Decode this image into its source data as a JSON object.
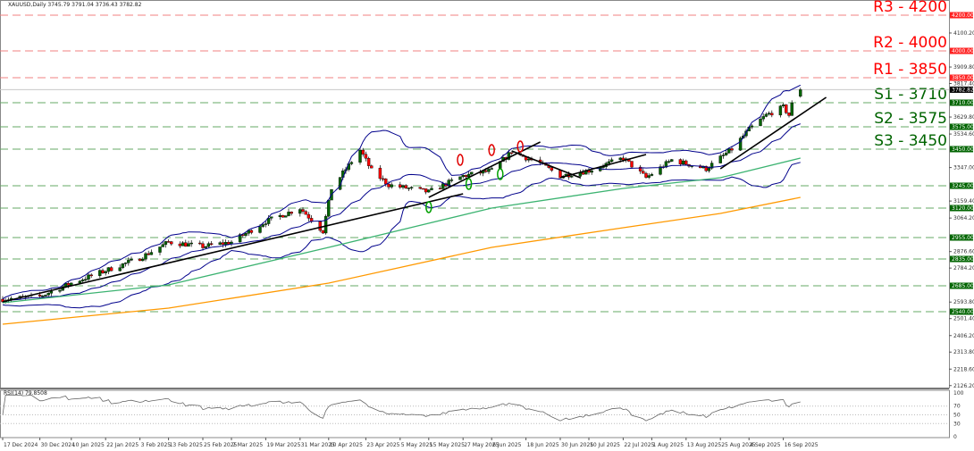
{
  "header": {
    "symbol_line": "XAUUSD,Daily  3745.79 3791.04 3736.43 3782.82"
  },
  "rsi": {
    "label": "RSI(14) 79.8508",
    "levels": [
      70,
      50,
      30
    ],
    "ticks": [
      "100",
      "70",
      "50",
      "30",
      "0"
    ]
  },
  "chart_data": {
    "type": "candlestick",
    "title": "XAUUSD,Daily",
    "ohlc_last": {
      "open": 3745.79,
      "high": 3791.04,
      "low": 3736.43,
      "close": 3782.82
    },
    "ylim": [
      2126.2,
      4230
    ],
    "y_ticks": [
      "4100.20",
      "3909.80",
      "3817.40",
      "3629.80",
      "3534.60",
      "3347.00",
      "3159.40",
      "3064.20",
      "2876.60",
      "2784.20",
      "2593.80",
      "2501.40",
      "2406.20",
      "2313.80",
      "2218.60",
      "2126.20"
    ],
    "x_ticks": [
      "17 Dec 2024",
      "30 Dec 2024",
      "10 Jan 2025",
      "22 Jan 2025",
      "3 Feb 2025",
      "13 Feb 2025",
      "25 Feb 2025",
      "7 Mar 2025",
      "19 Mar 2025",
      "31 Mar 2025",
      "10 Apr 2025",
      "23 Apr 2025",
      "5 May 2025",
      "15 May 2025",
      "27 May 2025",
      "6 Jun 2025",
      "18 Jun 2025",
      "30 Jun 2025",
      "10 Jul 2025",
      "22 Jul 2025",
      "1 Aug 2025",
      "13 Aug 2025",
      "25 Aug 2025",
      "4 Sep 2025",
      "16 Sep 2025"
    ],
    "last_price": "3782.82",
    "levels": [
      {
        "name": "R3",
        "value": 4200,
        "label": "R3 - 4200",
        "tag": "4200.00",
        "color": "#ff0000"
      },
      {
        "name": "R2",
        "value": 4000,
        "label": "R2 - 4000",
        "tag": "4000.00",
        "color": "#ff0000"
      },
      {
        "name": "R1",
        "value": 3850,
        "label": "R1 - 3850",
        "tag": "3850.00",
        "color": "#ff0000"
      },
      {
        "name": "S1",
        "value": 3710,
        "label": "S1 - 3710",
        "tag": "3710.00",
        "color": "#006400"
      },
      {
        "name": "S2",
        "value": 3575,
        "label": "S2 - 3575",
        "tag": "3575.00",
        "color": "#006400"
      },
      {
        "name": "S3",
        "value": 3450,
        "label": "S3 - 3450",
        "tag": "3450.00",
        "color": "#006400"
      },
      {
        "value": 3245,
        "label": "",
        "tag": "3245.00",
        "color": "#006400"
      },
      {
        "value": 3120,
        "label": "",
        "tag": "3120.00",
        "color": "#006400"
      },
      {
        "value": 2955,
        "label": "",
        "tag": "2955.00",
        "color": "#006400"
      },
      {
        "value": 2835,
        "label": "",
        "tag": "2835.00",
        "color": "#006400"
      },
      {
        "value": 2685,
        "label": "",
        "tag": "2685.00",
        "color": "#006400"
      },
      {
        "value": 2540,
        "label": "",
        "tag": "2540.00",
        "color": "#006400"
      }
    ],
    "close_path": [
      [
        "2024-12-17",
        2610
      ],
      [
        "2024-12-30",
        2625
      ],
      [
        "2025-01-10",
        2700
      ],
      [
        "2025-01-22",
        2770
      ],
      [
        "2025-02-03",
        2840
      ],
      [
        "2025-02-13",
        2930
      ],
      [
        "2025-02-25",
        2905
      ],
      [
        "2025-03-07",
        2930
      ],
      [
        "2025-03-19",
        3045
      ],
      [
        "2025-03-31",
        3120
      ],
      [
        "2025-04-08",
        2990
      ],
      [
        "2025-04-11",
        3230
      ],
      [
        "2025-04-21",
        3445
      ],
      [
        "2025-04-25",
        3330
      ],
      [
        "2025-05-01",
        3250
      ],
      [
        "2025-05-15",
        3210
      ],
      [
        "2025-05-27",
        3300
      ],
      [
        "2025-06-06",
        3330
      ],
      [
        "2025-06-13",
        3435
      ],
      [
        "2025-06-23",
        3370
      ],
      [
        "2025-06-30",
        3300
      ],
      [
        "2025-07-10",
        3330
      ],
      [
        "2025-07-22",
        3400
      ],
      [
        "2025-07-30",
        3290
      ],
      [
        "2025-08-08",
        3390
      ],
      [
        "2025-08-20",
        3340
      ],
      [
        "2025-08-29",
        3450
      ],
      [
        "2025-09-04",
        3560
      ],
      [
        "2025-09-10",
        3640
      ],
      [
        "2025-09-16",
        3685
      ],
      [
        "2025-09-18",
        3640
      ],
      [
        "2025-09-19",
        3700
      ],
      [
        "2025-09-22",
        3782.82
      ]
    ],
    "ma_green": [
      [
        "2024-12-17",
        2590
      ],
      [
        "2025-02-13",
        2690
      ],
      [
        "2025-04-10",
        2900
      ],
      [
        "2025-06-06",
        3120
      ],
      [
        "2025-07-22",
        3230
      ],
      [
        "2025-08-25",
        3290
      ],
      [
        "2025-09-22",
        3400
      ]
    ],
    "ma_orange": [
      [
        "2024-12-17",
        2470
      ],
      [
        "2025-02-13",
        2560
      ],
      [
        "2025-04-10",
        2700
      ],
      [
        "2025-06-06",
        2900
      ],
      [
        "2025-07-22",
        3010
      ],
      [
        "2025-08-25",
        3090
      ],
      [
        "2025-09-22",
        3180
      ]
    ],
    "trendlines": [
      [
        [
          "2024-12-17",
          2595
        ],
        [
          "2025-05-27",
          3200
        ]
      ],
      [
        [
          "2025-05-15",
          3180
        ],
        [
          "2025-06-23",
          3490
        ]
      ],
      [
        [
          "2025-06-13",
          3440
        ],
        [
          "2025-07-07",
          3290
        ]
      ],
      [
        [
          "2025-06-30",
          3290
        ],
        [
          "2025-07-30",
          3420
        ]
      ],
      [
        [
          "2025-08-25",
          3340
        ],
        [
          "2025-10-01",
          3740
        ]
      ]
    ],
    "pivots": [
      {
        "date": "2025-05-15",
        "price": 3125,
        "kind": "low",
        "color": "#00a000"
      },
      {
        "date": "2025-05-29",
        "price": 3255,
        "kind": "low",
        "color": "#00a000"
      },
      {
        "date": "2025-06-09",
        "price": 3310,
        "kind": "low",
        "color": "#00a000"
      },
      {
        "date": "2025-05-26",
        "price": 3390,
        "kind": "high",
        "color": "#e00000"
      },
      {
        "date": "2025-06-06",
        "price": 3445,
        "kind": "high",
        "color": "#e00000"
      },
      {
        "date": "2025-06-16",
        "price": 3465,
        "kind": "high",
        "color": "#e00000"
      }
    ],
    "colors": {
      "bull": "#006400",
      "bear": "#ff0000",
      "bands": "#00008b",
      "ma_green": "#3cb371",
      "ma_orange": "#ff9900",
      "trend": "#000000"
    }
  }
}
